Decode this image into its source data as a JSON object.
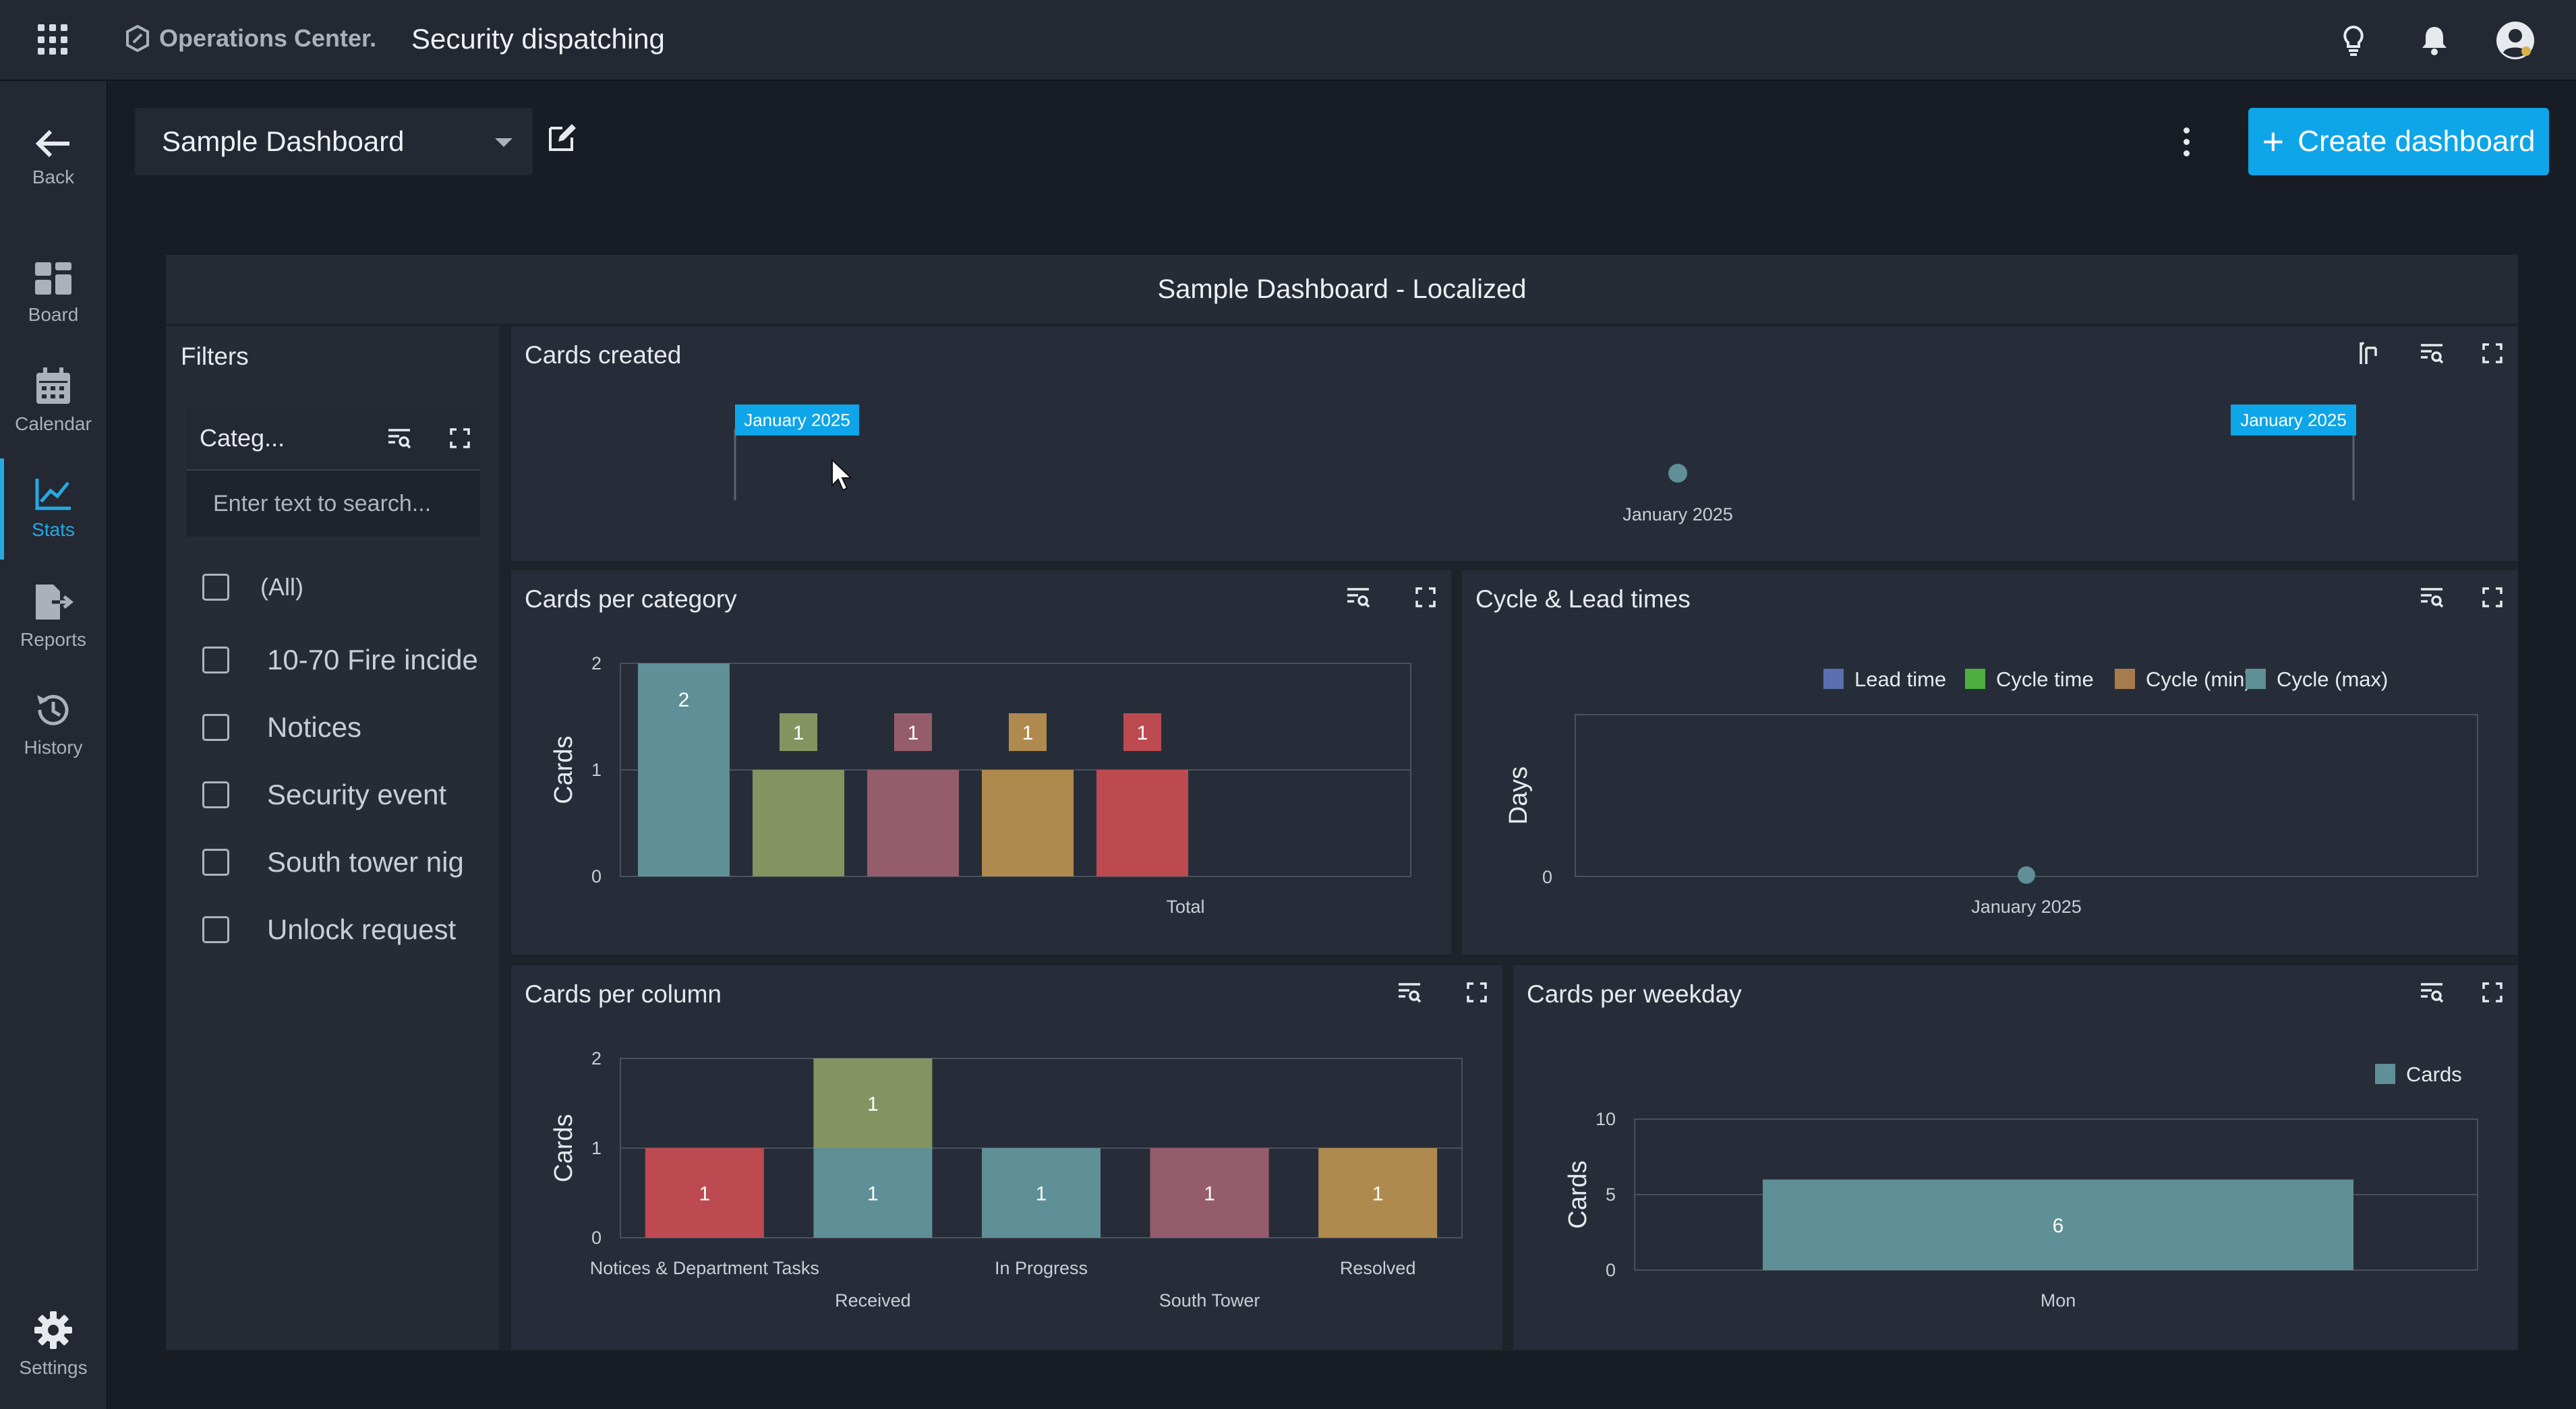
{
  "topbar": {
    "brand": "Operations Center.",
    "title": "Security dispatching",
    "icons": [
      "apps-grid-icon",
      "lightbulb-icon",
      "bell-icon",
      "user-avatar-icon"
    ]
  },
  "sidebar": {
    "items": [
      {
        "label": "Back",
        "icon": "arrow-left-icon"
      },
      {
        "label": "Board",
        "icon": "board-icon"
      },
      {
        "label": "Calendar",
        "icon": "calendar-icon"
      },
      {
        "label": "Stats",
        "icon": "stats-icon",
        "active": true
      },
      {
        "label": "Reports",
        "icon": "reports-icon"
      },
      {
        "label": "History",
        "icon": "history-icon"
      },
      {
        "label": "Settings",
        "icon": "gear-icon"
      }
    ]
  },
  "header": {
    "dashboard_select": "Sample Dashboard",
    "create_label": "Create dashboard",
    "accent": "#0ea5e9"
  },
  "dashboard": {
    "title": "Sample Dashboard - Localized",
    "filters": {
      "title": "Filters",
      "category_label": "Categ...",
      "search_placeholder": "Enter text to search...",
      "options": [
        "(All)",
        "10-70 Fire incide",
        "Notices",
        "Security event",
        "South tower nig",
        "Unlock request"
      ]
    },
    "cards_created": {
      "title": "Cards created",
      "range_start": "January 2025",
      "range_end": "January 2025",
      "x_label": "January 2025"
    },
    "cards_per_category": {
      "title": "Cards per category"
    },
    "cycle_lead": {
      "title": "Cycle & Lead times"
    },
    "cards_per_column": {
      "title": "Cards per column"
    },
    "cards_per_weekday": {
      "title": "Cards per weekday"
    }
  },
  "chart_data": [
    {
      "id": "cards_per_category",
      "type": "bar",
      "ylabel": "Cards",
      "ylim": [
        0,
        2
      ],
      "yticks": [
        0,
        1,
        2
      ],
      "categories": [
        "Total"
      ],
      "series": [
        {
          "value": 2,
          "color": "#5f8f97"
        },
        {
          "value": 1,
          "color": "#839460"
        },
        {
          "value": 1,
          "color": "#955d6c"
        },
        {
          "value": 1,
          "color": "#ae8a4e"
        },
        {
          "value": 1,
          "color": "#bd4a50"
        }
      ]
    },
    {
      "id": "cycle_lead",
      "type": "scatter",
      "ylabel": "Days",
      "yticks": [
        0
      ],
      "x": [
        "January 2025"
      ],
      "legend": [
        {
          "name": "Lead time",
          "color": "#5b6fb0"
        },
        {
          "name": "Cycle time",
          "color": "#4caf3f"
        },
        {
          "name": "Cycle (min)",
          "color": "#a67c4e"
        },
        {
          "name": "Cycle (max)",
          "color": "#5f8f97"
        }
      ],
      "points": [
        {
          "x": "January 2025",
          "y": 0
        }
      ],
      "legend_position": "top-right"
    },
    {
      "id": "cards_per_column",
      "type": "bar",
      "stacked": true,
      "ylabel": "Cards",
      "ylim": [
        0,
        2
      ],
      "yticks": [
        0,
        1,
        2
      ],
      "categories": [
        "Notices & Department Tasks",
        "Received",
        "In Progress",
        "South Tower",
        "Resolved"
      ],
      "stacks": [
        [
          {
            "value": 1,
            "color": "#bd4a50"
          }
        ],
        [
          {
            "value": 1,
            "color": "#5f8f97"
          },
          {
            "value": 1,
            "color": "#839460"
          }
        ],
        [
          {
            "value": 1,
            "color": "#5f8f97"
          }
        ],
        [
          {
            "value": 1,
            "color": "#955d6c"
          }
        ],
        [
          {
            "value": 1,
            "color": "#ae8a4e"
          }
        ]
      ]
    },
    {
      "id": "cards_per_weekday",
      "type": "bar",
      "ylabel": "Cards",
      "ylim": [
        0,
        10
      ],
      "yticks": [
        0,
        5,
        10
      ],
      "categories": [
        "Mon"
      ],
      "series": [
        {
          "name": "Cards",
          "values": [
            6
          ],
          "color": "#5f8f97"
        }
      ],
      "legend_position": "top-right"
    }
  ]
}
